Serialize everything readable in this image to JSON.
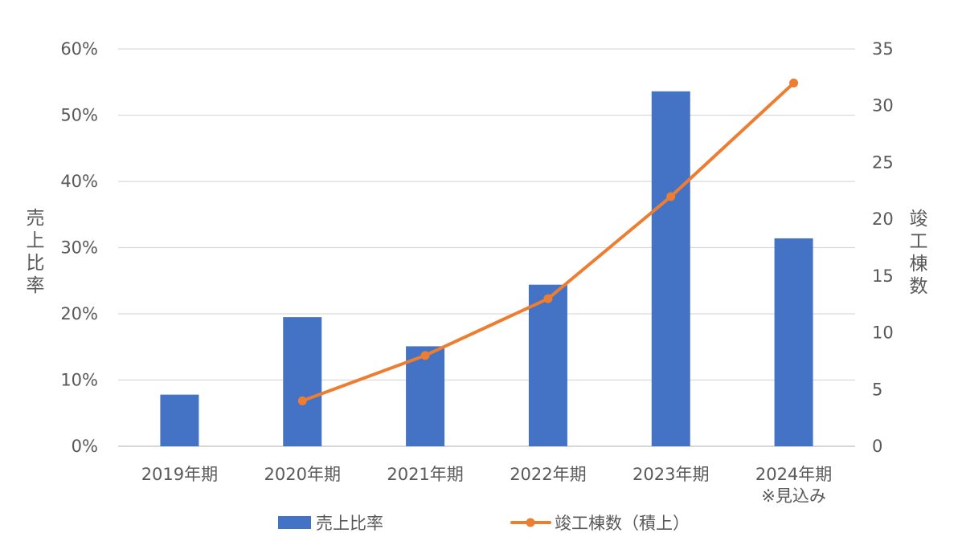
{
  "chart_data": {
    "type": "bar+line",
    "categories": [
      [
        "2019年期"
      ],
      [
        "2020年期"
      ],
      [
        "2021年期"
      ],
      [
        "2022年期"
      ],
      [
        "2023年期"
      ],
      [
        "2024年期",
        "※見込み"
      ]
    ],
    "series": [
      {
        "name": "売上比率",
        "type": "bar",
        "axis": "left",
        "color": "#4472C4",
        "values": [
          7.8,
          19.5,
          15.1,
          24.4,
          53.6,
          31.4
        ]
      },
      {
        "name": "竣工棟数（積上）",
        "type": "line",
        "axis": "right",
        "color": "#ED7D31",
        "values": [
          null,
          4,
          8,
          13,
          22,
          32
        ]
      }
    ],
    "y_left": {
      "label": "売上比率",
      "lim": [
        0,
        60
      ],
      "ticks": [
        0,
        10,
        20,
        30,
        40,
        50,
        60
      ],
      "tick_labels": [
        "0%",
        "10%",
        "20%",
        "30%",
        "40%",
        "50%",
        "60%"
      ]
    },
    "y_right": {
      "label": "竣工棟数",
      "lim": [
        0,
        35
      ],
      "ticks": [
        0,
        5,
        10,
        15,
        20,
        25,
        30,
        35
      ],
      "tick_labels": [
        "0",
        "5",
        "10",
        "15",
        "20",
        "25",
        "30",
        "35"
      ]
    },
    "grid": true,
    "legend_position": "bottom"
  }
}
